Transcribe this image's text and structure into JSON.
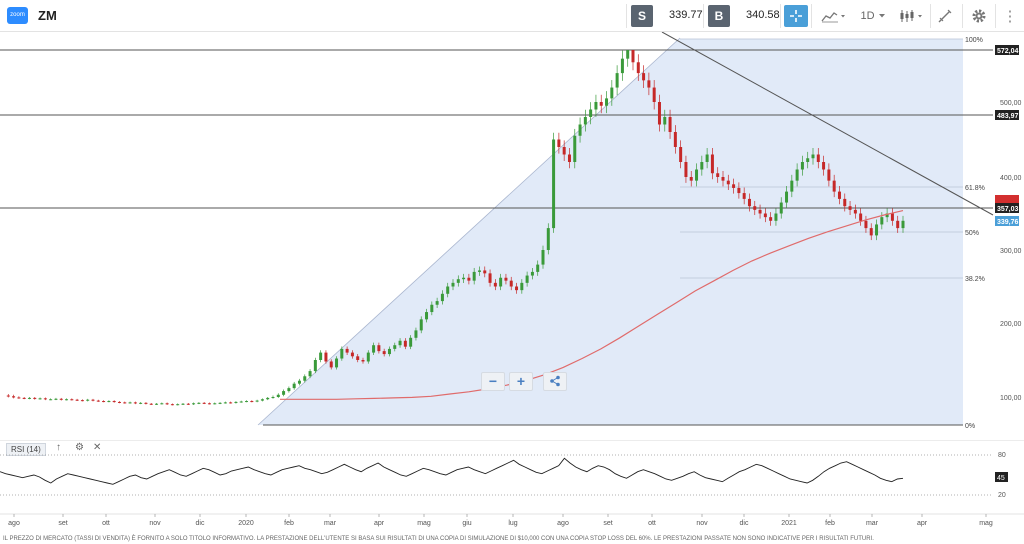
{
  "header": {
    "logo_text": "zoom",
    "symbol": "ZM",
    "sell_label": "S",
    "sell_price": "339.77",
    "buy_label": "B",
    "buy_price": "340.58",
    "timeframe": "1D",
    "icons": [
      "crosshair-icon",
      "line-chart-icon",
      "candlestick-icon",
      "draw-tool-icon",
      "gear-icon"
    ]
  },
  "chart_data": {
    "type": "candlestick",
    "price_axis_ticks": [
      "500,00",
      "400,00",
      "300,00",
      "200,00",
      "100,00"
    ],
    "time_axis_ticks": [
      "ago",
      "set",
      "ott",
      "nov",
      "dic",
      "2020",
      "feb",
      "mar",
      "apr",
      "mag",
      "giu",
      "lug",
      "ago",
      "set",
      "ott",
      "nov",
      "dic",
      "2021",
      "feb",
      "mar",
      "apr",
      "mag"
    ],
    "fib_levels": [
      "100%",
      "61.8%",
      "50%",
      "38.2%",
      "0%"
    ],
    "price_badges": [
      {
        "label": "572,04",
        "color": "#222222"
      },
      {
        "label": "483,97",
        "color": "#222222"
      },
      {
        "label": "357,03",
        "color": "#222222"
      },
      {
        "label": "339,76",
        "color": "#4a9fd8"
      }
    ],
    "price_path": [
      102,
      101,
      99,
      98,
      97,
      98,
      96,
      97,
      95,
      95,
      96,
      94,
      95,
      94,
      93,
      92,
      94,
      92,
      91,
      90,
      91,
      89,
      88,
      87,
      88,
      86,
      87,
      85,
      84,
      85,
      86,
      84,
      83,
      84,
      85,
      84,
      86,
      87,
      86,
      85,
      86,
      87,
      88,
      87,
      89,
      90,
      91,
      90,
      92,
      95,
      98,
      100,
      103,
      108,
      112,
      118,
      122,
      128,
      135,
      150,
      160,
      148,
      140,
      152,
      165,
      160,
      155,
      150,
      148,
      160,
      170,
      162,
      158,
      165,
      170,
      176,
      168,
      180,
      190,
      205,
      215,
      225,
      230,
      240,
      250,
      255,
      260,
      262,
      258,
      270,
      272,
      268,
      255,
      250,
      262,
      258,
      250,
      245,
      255,
      265,
      270,
      280,
      300,
      330,
      450,
      440,
      430,
      420,
      455,
      470,
      480,
      490,
      500,
      495,
      505,
      520,
      540,
      560,
      572,
      555,
      540,
      530,
      520,
      500,
      470,
      480,
      460,
      440,
      420,
      400,
      395,
      410,
      420,
      430,
      405,
      400,
      395,
      390,
      385,
      378,
      370,
      360,
      355,
      350,
      345,
      340,
      350,
      365,
      380,
      395,
      410,
      420,
      425,
      430,
      420,
      410,
      395,
      380,
      370,
      360,
      355,
      350,
      340,
      330,
      320,
      335,
      345,
      350,
      340,
      330,
      340
    ],
    "ma_path": [
      95,
      95,
      95,
      95,
      96,
      97,
      98,
      99,
      101,
      104,
      107,
      111,
      116,
      122,
      130,
      140,
      152,
      165,
      180,
      196,
      212,
      228,
      244,
      258,
      272,
      285,
      296,
      306,
      316,
      325,
      333,
      341,
      348,
      354
    ]
  },
  "rsi": {
    "label": "RSI (14)",
    "ticks": [
      "80",
      "20"
    ],
    "current": "45",
    "values": [
      55,
      52,
      50,
      48,
      46,
      48,
      50,
      47,
      42,
      38,
      44,
      48,
      52,
      50,
      48,
      46,
      44,
      42,
      40,
      38,
      36,
      40,
      44,
      48,
      50,
      46,
      44,
      48,
      52,
      55,
      58,
      54,
      50,
      48,
      52,
      56,
      60,
      58,
      54,
      50,
      52,
      56,
      58,
      60,
      62,
      58,
      55,
      52,
      50,
      54,
      58,
      60,
      62,
      64,
      60,
      58,
      55,
      52,
      54,
      58,
      62,
      66,
      62,
      58,
      55,
      60,
      64,
      68,
      62,
      58,
      54,
      50,
      48,
      52,
      56,
      60,
      58,
      55,
      52,
      50,
      54,
      58,
      60,
      62,
      58,
      55,
      52,
      56,
      60,
      64,
      68,
      72,
      66,
      62,
      58,
      54,
      52,
      56,
      60,
      64,
      75,
      68,
      62,
      58,
      55,
      60,
      64,
      62,
      58,
      52,
      48,
      45,
      50,
      55,
      58,
      55,
      52,
      48,
      44,
      42,
      45,
      48,
      52,
      55,
      50,
      46,
      44,
      42,
      40,
      45,
      50,
      55,
      58,
      62,
      66,
      64,
      60,
      56,
      52,
      48,
      44,
      42,
      40,
      38,
      42,
      48,
      55,
      60,
      64,
      68,
      70,
      66,
      62,
      58,
      54,
      50,
      45,
      42,
      40,
      44,
      45
    ]
  },
  "footer_text": "IL PREZZO DI MERCATO (TASSI DI VENDITA) È FORNITO A SOLO TITOLO INFORMATIVO. LA PRESTAZIONE DELL'UTENTE SI BASA SUI RISULTATI DI UNA COPIA DI SIMULAZIONE DI $10,000 CON UNA COPIA STOP LOSS DEL 60%. LE PRESTAZIONI PASSATE NON SONO INDICATIVE PER I RISULTATI FUTURI."
}
